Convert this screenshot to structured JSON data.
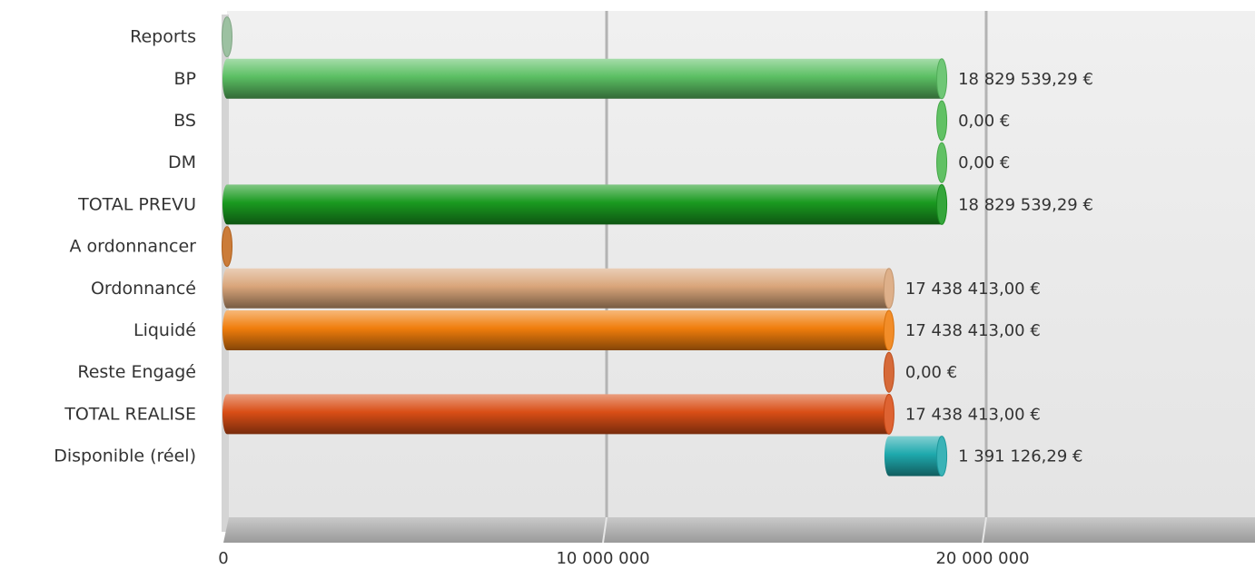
{
  "chart_data": {
    "type": "bar",
    "orientation": "horizontal",
    "style": "3d-cylinder",
    "categories": [
      "Reports",
      "BP",
      "BS",
      "DM",
      "TOTAL PREVU",
      "A ordonnancer",
      "Ordonnancé",
      "Liquidé",
      "Reste Engagé",
      "TOTAL REALISE",
      "Disponible (réel)"
    ],
    "bars": [
      {
        "category": "Reports",
        "start": 0,
        "value": 0,
        "label": "",
        "color": "#8fb894"
      },
      {
        "category": "BP",
        "start": 0,
        "value": 18829539.29,
        "label": "18 829 539,29 €",
        "color": "#5bbf63"
      },
      {
        "category": "BS",
        "start": 18829539.29,
        "value": 0,
        "label": "0,00 €",
        "color": "#4cb84f"
      },
      {
        "category": "DM",
        "start": 18829539.29,
        "value": 0,
        "label": "0,00 €",
        "color": "#4cb84f"
      },
      {
        "category": "TOTAL PREVU",
        "start": 0,
        "value": 18829539.29,
        "label": "18 829 539,29 €",
        "color": "#1a9a20"
      },
      {
        "category": "A ordonnancer",
        "start": 0,
        "value": 0,
        "label": "",
        "color": "#c46a1e"
      },
      {
        "category": "Ordonnancé",
        "start": 0,
        "value": 17438413.0,
        "label": "17 438 413,00 €",
        "color": "#d9a57a"
      },
      {
        "category": "Liquidé",
        "start": 0,
        "value": 17438413.0,
        "label": "17 438 413,00 €",
        "color": "#f07d0c"
      },
      {
        "category": "Reste Engagé",
        "start": 17438413.0,
        "value": 0,
        "label": "0,00 €",
        "color": "#d0561e"
      },
      {
        "category": "TOTAL REALISE",
        "start": 0,
        "value": 17438413.0,
        "label": "17 438 413,00 €",
        "color": "#d94e16"
      },
      {
        "category": "Disponible (réel)",
        "start": 17438413.0,
        "value": 1391126.29,
        "label": "1 391 126,29 €",
        "color": "#1fa9ad"
      }
    ],
    "x_ticks": [
      {
        "value": 0,
        "label": "0"
      },
      {
        "value": 10000000,
        "label": "10 000 000"
      },
      {
        "value": 20000000,
        "label": "20 000 000"
      }
    ],
    "xlim": [
      0,
      27000000
    ],
    "grid": true,
    "legend": "none"
  }
}
